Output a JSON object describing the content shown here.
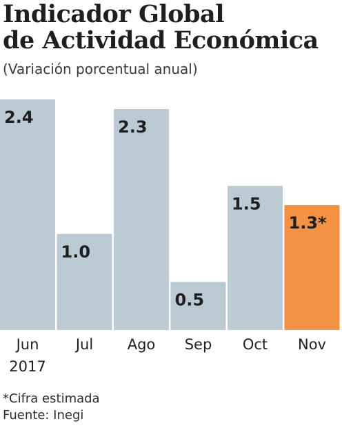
{
  "header": {
    "title_line1": "Indicador Global",
    "title_line2": "de Actividad Económica",
    "subtitle": "(Variación porcentual anual)"
  },
  "footer": {
    "note": "*Cifra estimada",
    "source": "Fuente: Inegi"
  },
  "colors": {
    "bar": "#bccad3",
    "bar_highlight": "#f39244",
    "text": "#1f1f1f"
  },
  "chart_data": {
    "type": "bar",
    "title": "Indicador Global de Actividad Económica",
    "subtitle": "(Variación porcentual anual)",
    "categories": [
      "Jun",
      "Jul",
      "Ago",
      "Sep",
      "Oct",
      "Nov"
    ],
    "category_sublabels": [
      "2017",
      "",
      "",
      "",
      "",
      ""
    ],
    "values": [
      2.4,
      1.0,
      2.3,
      0.5,
      1.5,
      1.3
    ],
    "value_labels": [
      "2.4",
      "1.0",
      "2.3",
      "0.5",
      "1.5",
      "1.3*"
    ],
    "highlight_index": 5,
    "ylim": [
      0,
      2.4
    ],
    "grid": false,
    "legend": "none"
  }
}
